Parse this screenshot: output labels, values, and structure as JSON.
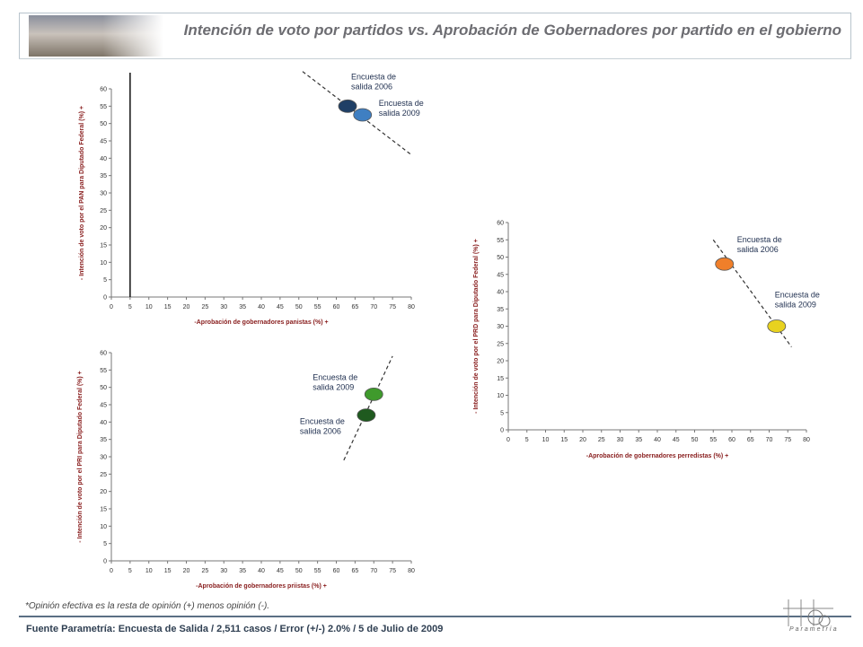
{
  "header": {
    "title": "Intención de voto por partidos vs. Aprobación de Gobernadores  por partido en el gobierno"
  },
  "footnote": "*Opinión efectiva es la resta de opinión (+) menos opinión (-).",
  "source": "Fuente Parametría: Encuesta de Salida / 2,511 casos / Error (+/-) 2.0% / 5 de Julio de 2009",
  "logo": {
    "text": "Parametría"
  },
  "chart_data": [
    {
      "type": "scatter",
      "xlabel": "-Aprobación de gobernadores panistas (%) +",
      "ylabel": "- Intención de voto por el PAN para Diputado Federal (%) +",
      "xlim": [
        0,
        80
      ],
      "ylim": [
        0,
        60
      ],
      "xticks": [
        0,
        5,
        10,
        15,
        20,
        25,
        30,
        35,
        40,
        45,
        50,
        55,
        60,
        65,
        70,
        75,
        80
      ],
      "yticks": [
        0,
        5,
        10,
        15,
        20,
        25,
        30,
        35,
        40,
        45,
        50,
        55,
        60
      ],
      "vline": 5,
      "series": [
        {
          "name": "Encuesta de salida 2006",
          "x": 63,
          "y": 55,
          "color": "#1f3f66"
        },
        {
          "name": "Encuesta de salida 2009",
          "x": 67,
          "y": 52.5,
          "color": "#3f7fc2"
        }
      ],
      "trend": [
        [
          51,
          65
        ],
        [
          80,
          41
        ]
      ]
    },
    {
      "type": "scatter",
      "xlabel": "-Aprobación de gobernadores priistas (%) +",
      "ylabel": "- Intención de voto por el PRI para Diputado Federal (%) +",
      "xlim": [
        0,
        80
      ],
      "ylim": [
        0,
        60
      ],
      "xticks": [
        0,
        5,
        10,
        15,
        20,
        25,
        30,
        35,
        40,
        45,
        50,
        55,
        60,
        65,
        70,
        75,
        80
      ],
      "yticks": [
        0,
        5,
        10,
        15,
        20,
        25,
        30,
        35,
        40,
        45,
        50,
        55,
        60
      ],
      "series": [
        {
          "name": "Encuesta de salida 2009",
          "x": 70,
          "y": 48,
          "color": "#3f9a2c"
        },
        {
          "name": "Encuesta de salida 2006",
          "x": 68,
          "y": 42,
          "color": "#1f5a1f"
        }
      ],
      "trend": [
        [
          62,
          29
        ],
        [
          75,
          59
        ]
      ]
    },
    {
      "type": "scatter",
      "xlabel": "-Aprobación de gobernadores perredistas (%) +",
      "ylabel": "- Intención de voto por el PRD para Diputado Federal (%) +",
      "xlim": [
        0,
        80
      ],
      "ylim": [
        0,
        60
      ],
      "xticks": [
        0,
        5,
        10,
        15,
        20,
        25,
        30,
        35,
        40,
        45,
        50,
        55,
        60,
        65,
        70,
        75,
        80
      ],
      "yticks": [
        0,
        5,
        10,
        15,
        20,
        25,
        30,
        35,
        40,
        45,
        50,
        55,
        60
      ],
      "series": [
        {
          "name": "Encuesta de salida 2006",
          "x": 58,
          "y": 48,
          "color": "#f07f2a"
        },
        {
          "name": "Encuesta de salida 2009",
          "x": 72,
          "y": 30,
          "color": "#e8d21f"
        }
      ],
      "trend": [
        [
          55,
          55
        ],
        [
          76,
          24
        ]
      ]
    }
  ]
}
